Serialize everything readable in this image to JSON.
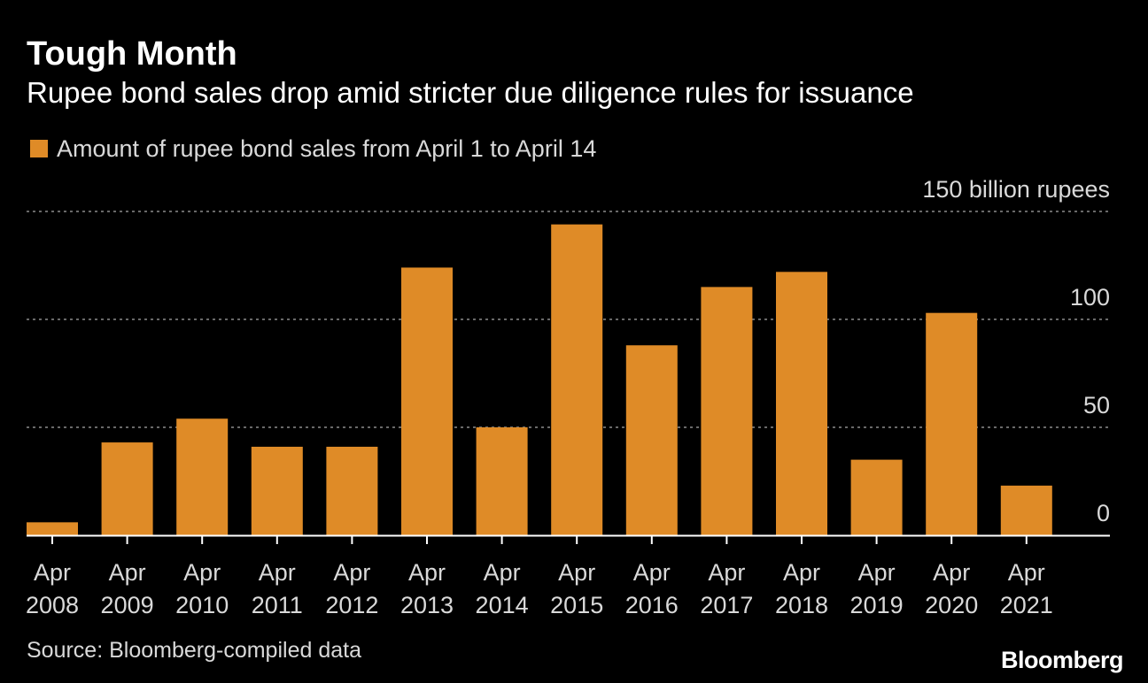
{
  "chart_data": {
    "type": "bar",
    "title": "Tough Month",
    "subtitle": "Rupee bond sales drop amid stricter due diligence rules for issuance",
    "series": [
      {
        "name": "Amount of rupee bond sales from April 1 to April 14",
        "color": "#df8b27",
        "values": [
          6,
          43,
          54,
          41,
          41,
          124,
          50,
          144,
          88,
          115,
          122,
          35,
          103,
          23
        ]
      }
    ],
    "categories": [
      [
        "Apr",
        "2008"
      ],
      [
        "Apr",
        "2009"
      ],
      [
        "Apr",
        "2010"
      ],
      [
        "Apr",
        "2011"
      ],
      [
        "Apr",
        "2012"
      ],
      [
        "Apr",
        "2013"
      ],
      [
        "Apr",
        "2014"
      ],
      [
        "Apr",
        "2015"
      ],
      [
        "Apr",
        "2016"
      ],
      [
        "Apr",
        "2017"
      ],
      [
        "Apr",
        "2018"
      ],
      [
        "Apr",
        "2019"
      ],
      [
        "Apr",
        "2020"
      ],
      [
        "Apr",
        "2021"
      ]
    ],
    "ylim": [
      0,
      150
    ],
    "yticks": [
      {
        "value": 0,
        "label": "0"
      },
      {
        "value": 50,
        "label": "50"
      },
      {
        "value": 100,
        "label": "100"
      },
      {
        "value": 150,
        "label": "150 billion rupees"
      }
    ],
    "ylabel": "billion rupees",
    "xlabel": "",
    "grid": true,
    "legend_position": "top-left"
  },
  "source": "Source: Bloomberg-compiled data",
  "brand": "Bloomberg",
  "colors": {
    "background": "#000000",
    "bar": "#df8b27",
    "text": "#ffffff",
    "secondary_text": "#d9d9d9",
    "grid": "#8c8c8c",
    "axis": "#ffffff"
  }
}
